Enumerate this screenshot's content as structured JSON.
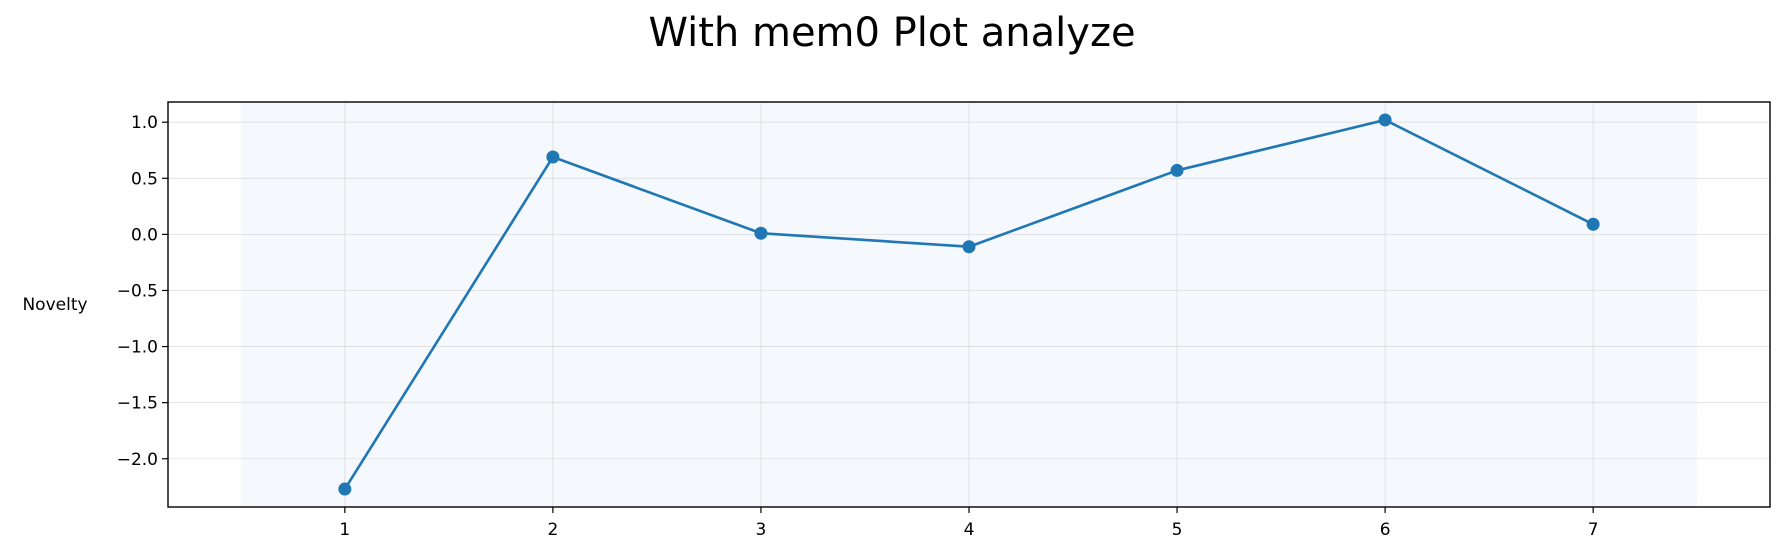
{
  "chart_data": {
    "type": "line",
    "title": "With mem0 Plot analyze",
    "xlabel": "",
    "ylabel": "Novelty",
    "x": [
      1,
      2,
      3,
      4,
      5,
      6,
      7
    ],
    "series": [
      {
        "values": [
          -2.27,
          0.69,
          0.01,
          -0.11,
          0.57,
          1.02,
          0.09
        ]
      }
    ],
    "xticks": [
      "1",
      "2",
      "3",
      "4",
      "5",
      "6",
      "7"
    ],
    "yticks": [
      "1.0",
      "0.5",
      "0.0",
      "−0.5",
      "−1.0",
      "−1.5",
      "−2.0"
    ],
    "ytick_values": [
      1.0,
      0.5,
      0.0,
      -0.5,
      -1.0,
      -1.5,
      -2.0
    ],
    "xlim": [
      0.15,
      7.85
    ],
    "ylim": [
      -2.43,
      1.18
    ],
    "shaded_x_range": [
      0.5,
      7.5
    ],
    "grid": true,
    "legend": "none",
    "colors": {
      "line": "#1f77b4",
      "shade": "#f5f8fc",
      "grid": "#dddddd",
      "axes": "#000000"
    }
  }
}
